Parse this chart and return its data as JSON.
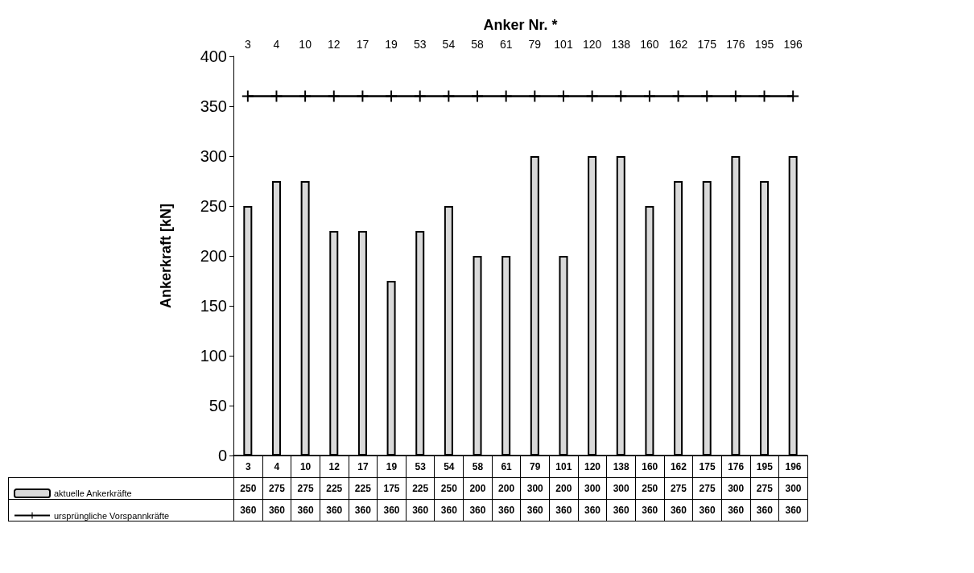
{
  "chart_data": {
    "type": "bar",
    "xlabel": "Anker Nr. *",
    "ylabel": "Ankerkraft [kN]",
    "categories": [
      "3",
      "4",
      "10",
      "12",
      "17",
      "19",
      "53",
      "54",
      "58",
      "61",
      "79",
      "101",
      "120",
      "138",
      "160",
      "162",
      "175",
      "176",
      "195",
      "196"
    ],
    "series": [
      {
        "name": "aktuelle Ankerkräfte",
        "color": "#d9d9d9",
        "values": [
          250,
          275,
          275,
          225,
          225,
          175,
          225,
          250,
          200,
          200,
          300,
          200,
          300,
          300,
          250,
          275,
          275,
          300,
          275,
          300
        ]
      },
      {
        "name": "ursprüngliche Vorspannkräfte",
        "type": "line",
        "color": "#000000",
        "marker": "cross",
        "values": [
          360,
          360,
          360,
          360,
          360,
          360,
          360,
          360,
          360,
          360,
          360,
          360,
          360,
          360,
          360,
          360,
          360,
          360,
          360,
          360
        ]
      }
    ],
    "ylim": [
      0,
      400
    ],
    "yticks": [
      0,
      50,
      100,
      150,
      200,
      250,
      300,
      350,
      400
    ],
    "grid": false,
    "legend": "bottom left",
    "data_labels": true
  }
}
